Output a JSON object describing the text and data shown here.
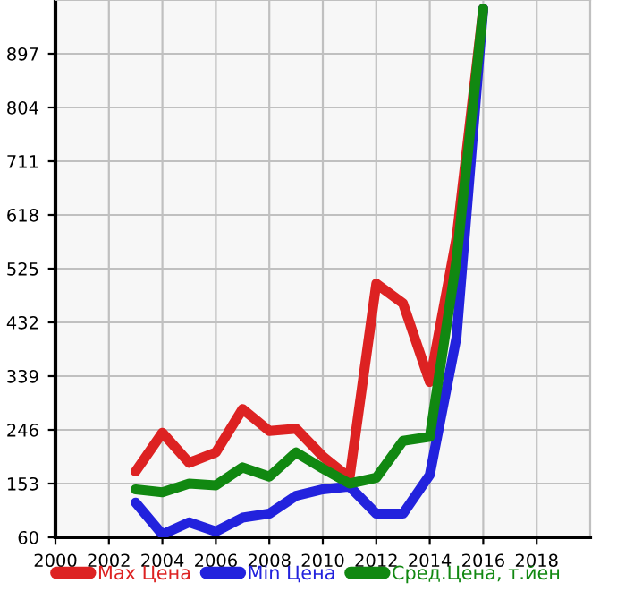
{
  "chart_data": {
    "type": "line",
    "x": [
      2003,
      2004,
      2005,
      2006,
      2007,
      2008,
      2009,
      2010,
      2011,
      2012,
      2013,
      2014,
      2015,
      2016
    ],
    "series": [
      {
        "name": "Max Цена",
        "color": "#dd2222",
        "values": [
          174,
          241,
          189,
          207,
          282,
          244,
          248,
          200,
          163,
          499,
          465,
          329,
          578,
          975
        ]
      },
      {
        "name": "Min Цена",
        "color": "#2222dd",
        "values": [
          120,
          65,
          86,
          70,
          94,
          101,
          132,
          143,
          148,
          101,
          101,
          168,
          406,
          975
        ]
      },
      {
        "name": "Сред.Цена, т.йен",
        "color": "#118811",
        "values": [
          143,
          138,
          153,
          150,
          181,
          165,
          207,
          179,
          153,
          163,
          227,
          234,
          540,
          975
        ]
      }
    ],
    "xlim": [
      2000,
      2020
    ],
    "xticks": [
      2000,
      2002,
      2004,
      2006,
      2008,
      2010,
      2012,
      2014,
      2016,
      2018
    ],
    "ylim": [
      60,
      990
    ],
    "yticks": [
      60,
      153,
      246,
      339,
      432,
      525,
      618,
      711,
      804,
      897
    ],
    "grid": true,
    "legend": "bottom",
    "marker": "none",
    "line_style": "solid"
  }
}
